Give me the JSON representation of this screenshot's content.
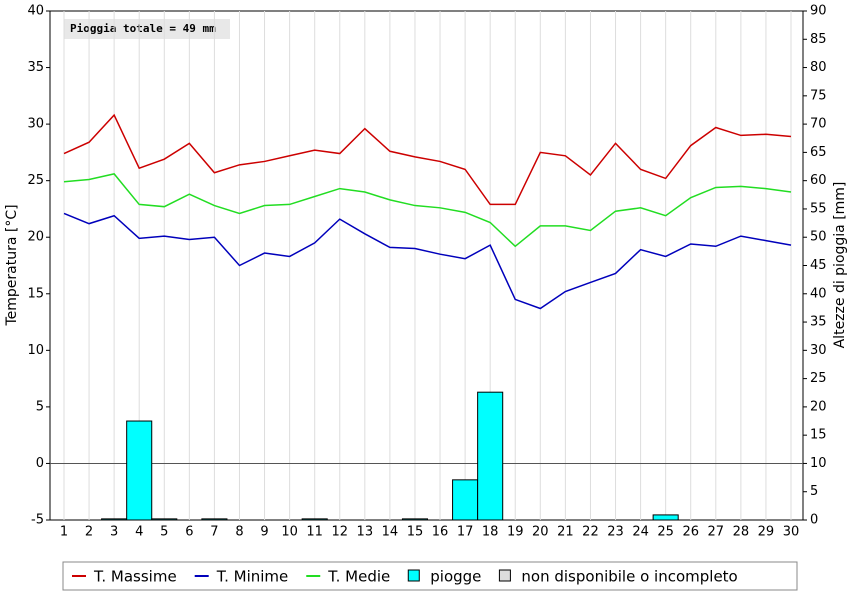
{
  "chart_data": {
    "type": "line",
    "annotation": "Pioggia totale = 49 mm",
    "ylabel": "Temperatura [°C]",
    "y2label": "Altezze di pioggia [mm]",
    "categories": [
      "1",
      "2",
      "3",
      "4",
      "5",
      "6",
      "7",
      "8",
      "9",
      "10",
      "11",
      "12",
      "13",
      "14",
      "15",
      "16",
      "17",
      "18",
      "19",
      "20",
      "21",
      "22",
      "23",
      "24",
      "25",
      "26",
      "27",
      "28",
      "29",
      "30"
    ],
    "ylim": [
      -5,
      40
    ],
    "yticks": [
      -5,
      0,
      5,
      10,
      15,
      20,
      25,
      30,
      35,
      40
    ],
    "y2lim": [
      0,
      90
    ],
    "y2ticks": [
      0,
      5,
      10,
      15,
      20,
      25,
      30,
      35,
      40,
      45,
      50,
      55,
      60,
      65,
      70,
      75,
      80,
      85,
      90
    ],
    "series": [
      {
        "name": "T. Massime",
        "color": "#cc0000",
        "kind": "line",
        "values": [
          27.4,
          28.4,
          30.8,
          26.1,
          26.9,
          28.3,
          25.7,
          26.4,
          26.7,
          27.2,
          27.7,
          27.4,
          29.6,
          27.6,
          27.1,
          26.7,
          26.0,
          22.9,
          22.9,
          27.5,
          27.2,
          25.5,
          28.3,
          26.0,
          25.2,
          28.1,
          29.7,
          29.0,
          29.1,
          28.9
        ]
      },
      {
        "name": "T. Minime",
        "color": "#0000bb",
        "kind": "line",
        "values": [
          22.1,
          21.2,
          21.9,
          19.9,
          20.1,
          19.8,
          20.0,
          17.5,
          18.6,
          18.3,
          19.5,
          21.6,
          20.3,
          19.1,
          19.0,
          18.5,
          18.1,
          19.3,
          14.5,
          13.7,
          15.2,
          16.0,
          16.8,
          18.9,
          18.3,
          19.4,
          19.2,
          20.1,
          19.7,
          19.3
        ]
      },
      {
        "name": "T. Medie",
        "color": "#22dd22",
        "kind": "line",
        "values": [
          24.9,
          25.1,
          25.6,
          22.9,
          22.7,
          23.8,
          22.8,
          22.1,
          22.8,
          22.9,
          23.6,
          24.3,
          24.0,
          23.3,
          22.8,
          22.6,
          22.2,
          21.3,
          19.2,
          21.0,
          21.0,
          20.6,
          22.3,
          22.6,
          21.9,
          23.5,
          24.4,
          24.5,
          24.3,
          24.0
        ]
      },
      {
        "name": "piogge",
        "color": "#00ffff",
        "kind": "bar",
        "axis": "y2",
        "values": [
          0,
          0,
          0.2,
          17.5,
          0.2,
          0,
          0.2,
          0,
          0,
          0,
          0.2,
          0,
          0,
          0,
          0.2,
          0,
          7.1,
          22.6,
          0,
          0,
          0,
          0,
          0,
          0,
          0.9,
          0,
          0,
          0,
          0,
          0
        ]
      }
    ],
    "legend_extra": {
      "name": "non disponibile o incompleto",
      "color": "#dddddd"
    }
  }
}
